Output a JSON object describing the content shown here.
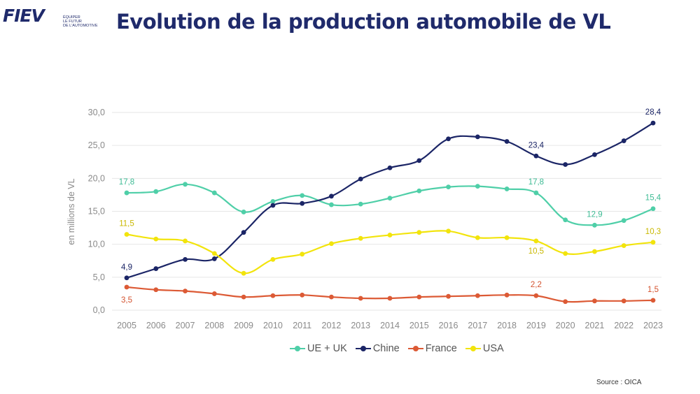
{
  "logo": {
    "text": "FIEV",
    "tagline": [
      "ÉQUIPER",
      "LE FUTUR",
      "DE L'AUTOMOTIVE"
    ]
  },
  "title": "Evolution de la production automobile de VL",
  "source": "Source : OICA",
  "chart_data": {
    "type": "line",
    "title": "Evolution de la production automobile de VL",
    "xlabel": "",
    "ylabel": "en millions de VL",
    "ylim": [
      0,
      30
    ],
    "yticks": [
      "0,0",
      "5,0",
      "10,0",
      "15,0",
      "20,0",
      "25,0",
      "30,0"
    ],
    "grid": true,
    "legend_position": "bottom",
    "categories": [
      "2005",
      "2006",
      "2007",
      "2008",
      "2009",
      "2010",
      "2011",
      "2012",
      "2013",
      "2014",
      "2015",
      "2016",
      "2017",
      "2018",
      "2019",
      "2020",
      "2021",
      "2022",
      "2023"
    ],
    "series": [
      {
        "name": "UE + UK",
        "color": "#4fcfa8",
        "values": [
          17.8,
          18.0,
          19.1,
          17.8,
          14.9,
          16.5,
          17.4,
          16.0,
          16.1,
          17.0,
          18.1,
          18.7,
          18.8,
          18.4,
          17.8,
          13.7,
          12.9,
          13.6,
          15.4
        ],
        "labels": [
          {
            "index": 0,
            "text": "17,8"
          },
          {
            "index": 14,
            "text": "17,8"
          },
          {
            "index": 16,
            "text": "12,9"
          },
          {
            "index": 18,
            "text": "15,4"
          }
        ]
      },
      {
        "name": "Chine",
        "color": "#1b2566",
        "values": [
          4.9,
          6.3,
          7.7,
          7.8,
          11.8,
          15.9,
          16.2,
          17.3,
          19.9,
          21.6,
          22.7,
          26.0,
          26.3,
          25.6,
          23.4,
          22.1,
          23.6,
          25.7,
          28.4
        ],
        "labels": [
          {
            "index": 0,
            "text": "4,9"
          },
          {
            "index": 14,
            "text": "23,4"
          },
          {
            "index": 18,
            "text": "28,4"
          }
        ]
      },
      {
        "name": "France",
        "color": "#dc5a35",
        "values": [
          3.5,
          3.1,
          2.9,
          2.5,
          2.0,
          2.2,
          2.3,
          2.0,
          1.8,
          1.8,
          2.0,
          2.1,
          2.2,
          2.3,
          2.2,
          1.3,
          1.4,
          1.4,
          1.5
        ],
        "labels": [
          {
            "index": 0,
            "text": "3,5"
          },
          {
            "index": 14,
            "text": "2,2"
          },
          {
            "index": 18,
            "text": "1,5"
          }
        ]
      },
      {
        "name": "USA",
        "color": "#f2e40c",
        "values": [
          11.5,
          10.8,
          10.5,
          8.6,
          5.6,
          7.7,
          8.5,
          10.1,
          10.9,
          11.4,
          11.8,
          12.0,
          11.0,
          11.0,
          10.5,
          8.6,
          8.9,
          9.8,
          10.3
        ],
        "labels": [
          {
            "index": 0,
            "text": "11,5"
          },
          {
            "index": 14,
            "text": "10,5"
          },
          {
            "index": 18,
            "text": "10,3"
          }
        ]
      }
    ]
  }
}
